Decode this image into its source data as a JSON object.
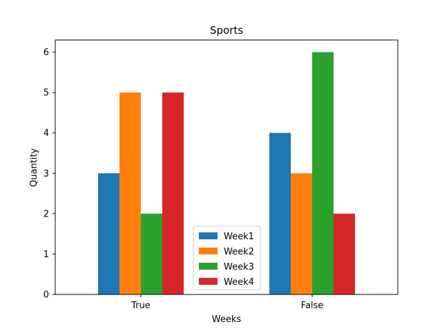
{
  "chart_data": {
    "type": "bar",
    "title": "Sports",
    "xlabel": "Weeks",
    "ylabel": "Quantity",
    "categories": [
      "True",
      "False"
    ],
    "series": [
      {
        "name": "Week1",
        "values": [
          3,
          4
        ],
        "color": "#1f77b4"
      },
      {
        "name": "Week2",
        "values": [
          5,
          3
        ],
        "color": "#ff7f0e"
      },
      {
        "name": "Week3",
        "values": [
          2,
          6
        ],
        "color": "#2ca02c"
      },
      {
        "name": "Week4",
        "values": [
          5,
          2
        ],
        "color": "#d62728"
      }
    ],
    "ylim": [
      0,
      6.3
    ],
    "yticks": [
      0,
      1,
      2,
      3,
      4,
      5,
      6
    ],
    "grid": false,
    "legend_position": "lower-center"
  }
}
